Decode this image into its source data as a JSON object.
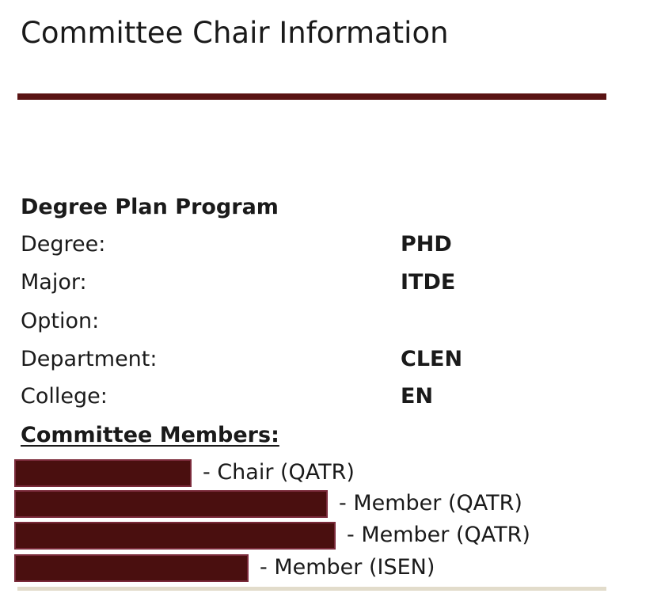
{
  "page": {
    "title": "Committee Chair Information"
  },
  "degree_plan": {
    "heading": "Degree Plan Program",
    "rows": [
      {
        "label": "Degree:",
        "value": "PHD"
      },
      {
        "label": "Major:",
        "value": "ITDE"
      },
      {
        "label": "Option:",
        "value": ""
      },
      {
        "label": "Department:",
        "value": "CLEN"
      },
      {
        "label": "College:",
        "value": "EN"
      }
    ]
  },
  "committee": {
    "heading": "Committee Members:",
    "members": [
      {
        "role": "- Chair (QATR)",
        "name_redacted": true
      },
      {
        "role": "- Member (QATR)",
        "name_redacted": true
      },
      {
        "role": "- Member (QATR)",
        "name_redacted": true
      },
      {
        "role": "- Member (ISEN)",
        "name_redacted": true
      }
    ]
  },
  "colors": {
    "accent_rule": "#5a1414",
    "redaction_fill": "#4a0f0f",
    "redaction_border": "#7a2a3a",
    "footer_rule": "#e2dccb"
  }
}
